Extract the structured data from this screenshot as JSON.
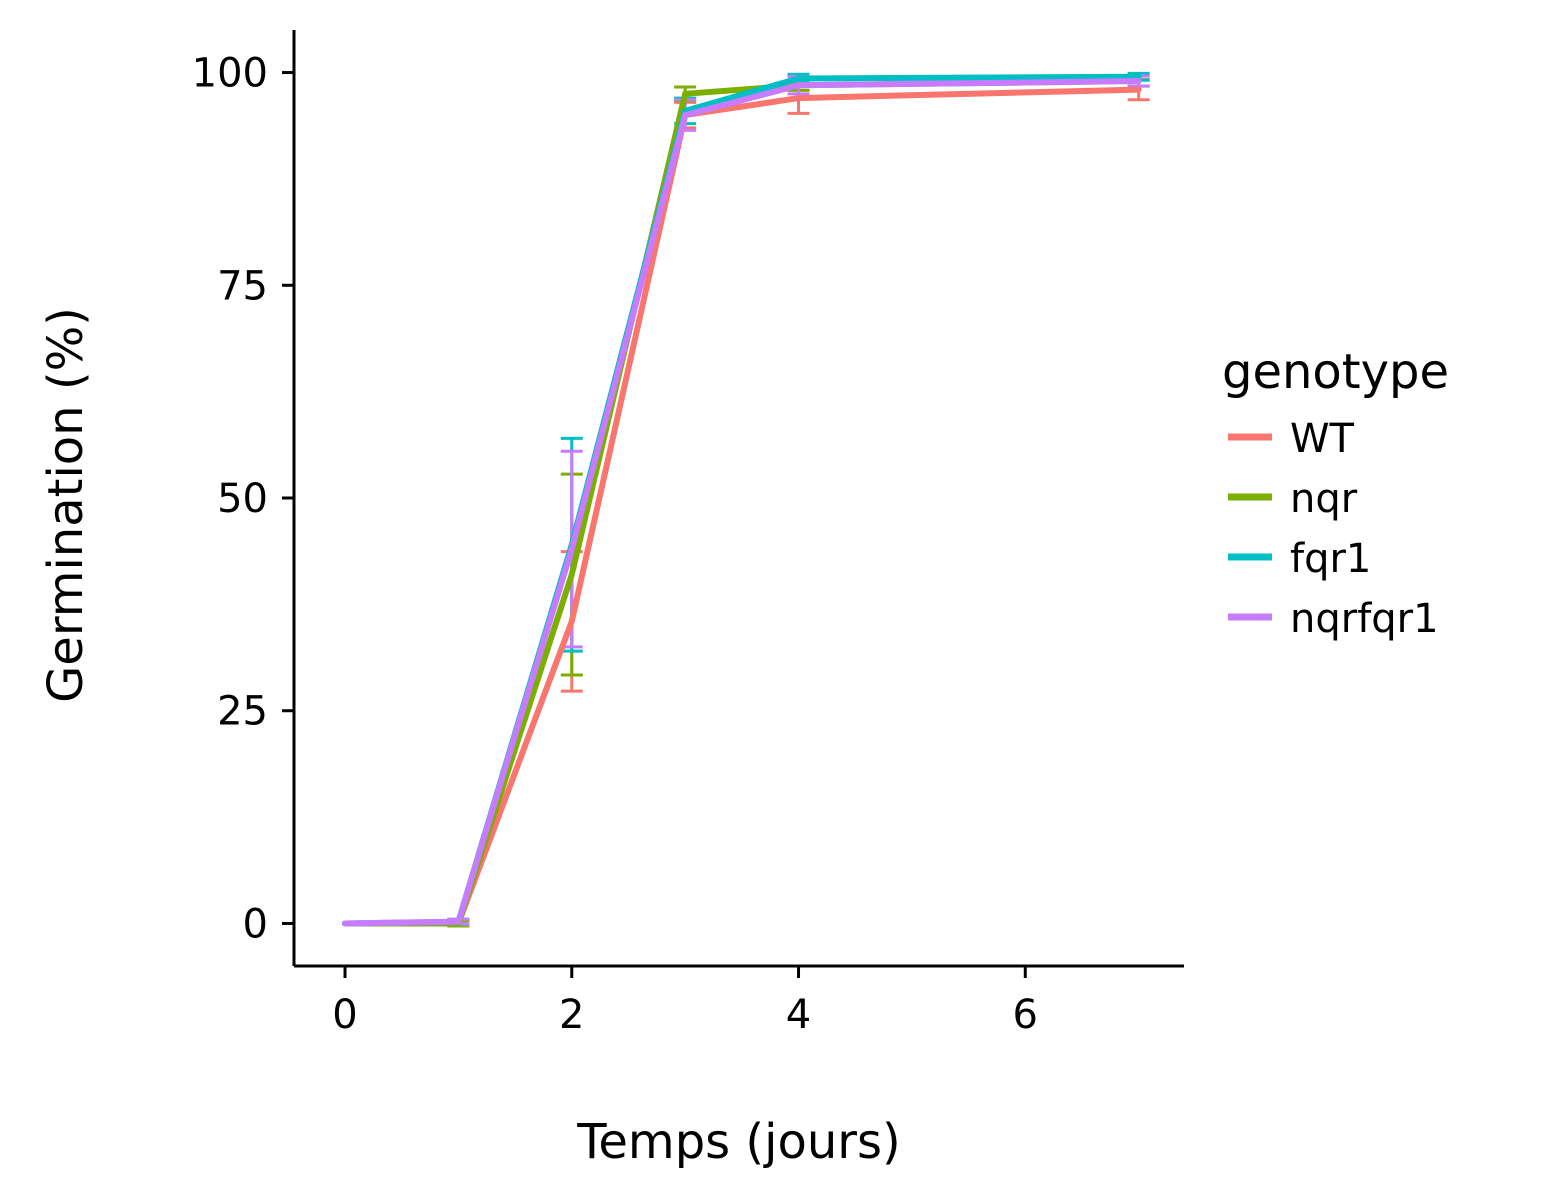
{
  "chart_data": {
    "type": "line",
    "xlabel": "Temps (jours)",
    "ylabel": "Germination (%)",
    "xlim": [
      -0.45,
      7.4
    ],
    "ylim": [
      -5,
      105
    ],
    "xticks": [
      0,
      2,
      4,
      6
    ],
    "yticks": [
      0,
      25,
      50,
      75,
      100
    ],
    "grid": false,
    "legend": {
      "title": "genotype",
      "position": "right"
    },
    "x": [
      0,
      1,
      2,
      3,
      4,
      7
    ],
    "series": [
      {
        "name": "WT",
        "color": "#F8766D",
        "values": [
          0,
          0,
          35.5,
          95,
          97,
          98
        ],
        "error": [
          0,
          0.3,
          8.2,
          1.5,
          1.8,
          1.2
        ]
      },
      {
        "name": "nqr",
        "color": "#7CAE00",
        "values": [
          0,
          0,
          41,
          97.5,
          98.5,
          99
        ],
        "error": [
          0,
          0.3,
          11.8,
          0.8,
          0.6,
          0.6
        ]
      },
      {
        "name": "fqr1",
        "color": "#00BFC4",
        "values": [
          0,
          0.2,
          44.5,
          95.5,
          99.3,
          99.5
        ],
        "error": [
          0,
          0.3,
          12.5,
          1.5,
          0.5,
          0.4
        ]
      },
      {
        "name": "nqrfqr1",
        "color": "#C77CFF",
        "values": [
          0,
          0.2,
          44,
          95,
          98.5,
          99
        ],
        "error": [
          0,
          0.3,
          11.5,
          1.8,
          1,
          0.6
        ]
      }
    ]
  }
}
